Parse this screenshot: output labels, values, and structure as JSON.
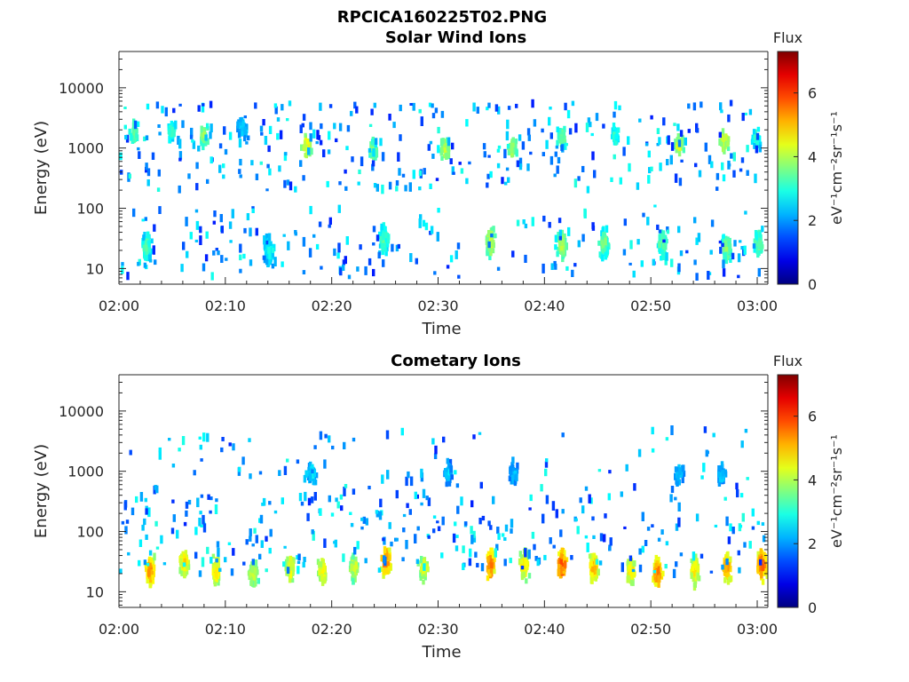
{
  "figure_title": "RPCICA160225T02.PNG",
  "colorbar": {
    "title": "Flux",
    "label": "eV⁻¹cm⁻²sr⁻¹s⁻¹",
    "ticks": [
      "0",
      "2",
      "4",
      "6"
    ],
    "range": [
      0,
      7.3
    ],
    "colormap": "jet"
  },
  "chart_data": [
    {
      "type": "heatmap",
      "title": "Solar Wind Ions",
      "xlabel": "Time",
      "ylabel": "Energy (eV)",
      "x_ticks": [
        "02:00",
        "02:10",
        "02:20",
        "02:30",
        "02:40",
        "02:50",
        "03:00"
      ],
      "y_ticks": [
        "10",
        "100",
        "1000",
        "10000"
      ],
      "y_scale": "log",
      "x_range": [
        "02:00",
        "03:01"
      ],
      "y_range_eV": [
        5.5,
        40000
      ],
      "bursts": [
        {
          "time_min": 1.3,
          "energy_eV": 1800,
          "flux": 3.6
        },
        {
          "time_min": 4.8,
          "energy_eV": 1900,
          "flux": 3.2
        },
        {
          "time_min": 7.8,
          "energy_eV": 1700,
          "flux": 3.9
        },
        {
          "time_min": 11.5,
          "energy_eV": 2200,
          "flux": 2.6
        },
        {
          "time_min": 17.5,
          "energy_eV": 1100,
          "flux": 4.6
        },
        {
          "time_min": 23.8,
          "energy_eV": 900,
          "flux": 3.9
        },
        {
          "time_min": 30.5,
          "energy_eV": 950,
          "flux": 4.2
        },
        {
          "time_min": 36.8,
          "energy_eV": 1000,
          "flux": 4.0
        },
        {
          "time_min": 41.5,
          "energy_eV": 1400,
          "flux": 3.7
        },
        {
          "time_min": 46.5,
          "energy_eV": 1600,
          "flux": 3.2
        },
        {
          "time_min": 52.5,
          "energy_eV": 1100,
          "flux": 4.3
        },
        {
          "time_min": 56.8,
          "energy_eV": 1300,
          "flux": 4.5
        },
        {
          "time_min": 59.8,
          "energy_eV": 1500,
          "flux": 3.2
        },
        {
          "time_min": 2.5,
          "energy_eV": 22,
          "flux": 3.4
        },
        {
          "time_min": 14.0,
          "energy_eV": 20,
          "flux": 3.0
        },
        {
          "time_min": 24.8,
          "energy_eV": 30,
          "flux": 3.4
        },
        {
          "time_min": 34.8,
          "energy_eV": 28,
          "flux": 4.4
        },
        {
          "time_min": 41.5,
          "energy_eV": 25,
          "flux": 4.1
        },
        {
          "time_min": 45.5,
          "energy_eV": 25,
          "flux": 3.7
        },
        {
          "time_min": 51.0,
          "energy_eV": 25,
          "flux": 3.6
        },
        {
          "time_min": 57.0,
          "energy_eV": 22,
          "flux": 3.9
        },
        {
          "time_min": 60.0,
          "energy_eV": 26,
          "flux": 3.6
        }
      ]
    },
    {
      "type": "heatmap",
      "title": "Cometary Ions",
      "xlabel": "Time",
      "ylabel": "Energy (eV)",
      "x_ticks": [
        "02:00",
        "02:10",
        "02:20",
        "02:30",
        "02:40",
        "02:50",
        "03:00"
      ],
      "y_ticks": [
        "10",
        "100",
        "1000",
        "10000"
      ],
      "y_scale": "log",
      "x_range": [
        "02:00",
        "03:01"
      ],
      "y_range_eV": [
        5.5,
        40000
      ],
      "bursts": [
        {
          "time_min": 2.8,
          "energy_eV": 22,
          "flux": 5.6
        },
        {
          "time_min": 6.0,
          "energy_eV": 30,
          "flux": 5.0
        },
        {
          "time_min": 9.0,
          "energy_eV": 22,
          "flux": 5.0
        },
        {
          "time_min": 12.5,
          "energy_eV": 20,
          "flux": 4.4
        },
        {
          "time_min": 16.0,
          "energy_eV": 25,
          "flux": 4.6
        },
        {
          "time_min": 19.0,
          "energy_eV": 22,
          "flux": 4.8
        },
        {
          "time_min": 22.0,
          "energy_eV": 25,
          "flux": 4.4
        },
        {
          "time_min": 25.0,
          "energy_eV": 32,
          "flux": 5.8
        },
        {
          "time_min": 28.5,
          "energy_eV": 25,
          "flux": 4.6
        },
        {
          "time_min": 34.8,
          "energy_eV": 28,
          "flux": 5.9
        },
        {
          "time_min": 38.0,
          "energy_eV": 28,
          "flux": 5.1
        },
        {
          "time_min": 41.5,
          "energy_eV": 28,
          "flux": 6.1
        },
        {
          "time_min": 44.5,
          "energy_eV": 25,
          "flux": 5.4
        },
        {
          "time_min": 48.0,
          "energy_eV": 22,
          "flux": 5.0
        },
        {
          "time_min": 50.5,
          "energy_eV": 20,
          "flux": 5.8
        },
        {
          "time_min": 54.0,
          "energy_eV": 22,
          "flux": 5.0
        },
        {
          "time_min": 57.0,
          "energy_eV": 25,
          "flux": 5.6
        },
        {
          "time_min": 60.3,
          "energy_eV": 28,
          "flux": 6.0
        },
        {
          "time_min": 18.0,
          "energy_eV": 900,
          "flux": 2.6
        },
        {
          "time_min": 30.8,
          "energy_eV": 900,
          "flux": 2.4
        },
        {
          "time_min": 37.0,
          "energy_eV": 900,
          "flux": 2.3
        },
        {
          "time_min": 52.5,
          "energy_eV": 900,
          "flux": 2.4
        },
        {
          "time_min": 56.5,
          "energy_eV": 900,
          "flux": 2.4
        }
      ]
    }
  ]
}
